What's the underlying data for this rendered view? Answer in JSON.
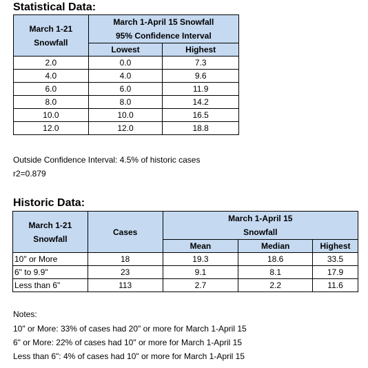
{
  "statistical": {
    "heading": "Statistical Data:",
    "col1_line1": "March 1-21",
    "col1_line2": "Snowfall",
    "group_line1": "March 1-April 15 Snowfall",
    "group_line2": "95% Confidence Interval",
    "lowest": "Lowest",
    "highest": "Highest",
    "rows": [
      {
        "snow": "2.0",
        "low": "0.0",
        "high": "7.3"
      },
      {
        "snow": "4.0",
        "low": "4.0",
        "high": "9.6"
      },
      {
        "snow": "6.0",
        "low": "6.0",
        "high": "11.9"
      },
      {
        "snow": "8.0",
        "low": "8.0",
        "high": "14.2"
      },
      {
        "snow": "10.0",
        "low": "10.0",
        "high": "16.5"
      },
      {
        "snow": "12.0",
        "low": "12.0",
        "high": "18.8"
      }
    ],
    "outside_ci": "Outside Confidence Interval: 4.5% of historic cases",
    "r2": "r2=0.879"
  },
  "historic": {
    "heading": "Historic Data:",
    "col1_line1": "March 1-21",
    "col1_line2": "Snowfall",
    "cases": "Cases",
    "group_line1": "March 1-April 15",
    "group_line2": "Snowfall",
    "mean": "Mean",
    "median": "Median",
    "highest": "Highest",
    "rows": [
      {
        "label": "10\" or More",
        "cases": "18",
        "mean": "19.3",
        "median": "18.6",
        "highest": "33.5"
      },
      {
        "label": "6\" to 9.9\"",
        "cases": "23",
        "mean": "9.1",
        "median": "8.1",
        "highest": "17.9"
      },
      {
        "label": "Less than 6\"",
        "cases": "113",
        "mean": "2.7",
        "median": "2.2",
        "highest": "11.6"
      }
    ]
  },
  "notes": {
    "title": "Notes:",
    "lines": [
      "10\" or More: 33% of cases had 20\" or more for March 1-April 15",
      "6\" or More: 22% of cases had 10\" or more for March 1-April 15",
      "Less than 6\": 4% of cases had 10\" or more for March 1-April 15"
    ]
  }
}
